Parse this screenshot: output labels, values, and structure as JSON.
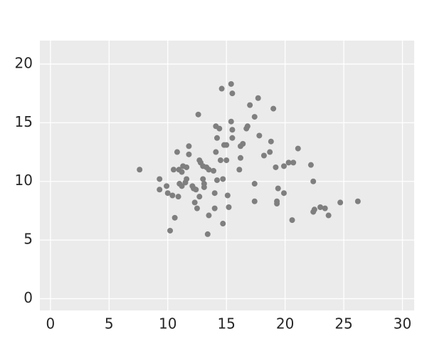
{
  "chart_data": {
    "type": "scatter",
    "color": "#7f7f7f",
    "background": "#ebebeb",
    "grid": true,
    "x": [
      7.6,
      9.3,
      9.3,
      9.9,
      10.0,
      10.4,
      10.6,
      10.2,
      10.5,
      10.8,
      10.96,
      11.2,
      11.3,
      11.6,
      11.0,
      11.2,
      11.5,
      11.6,
      10.9,
      11.8,
      11.8,
      12.1,
      12.2,
      12.4,
      12.3,
      12.5,
      12.6,
      12.7,
      12.8,
      12.7,
      13.0,
      13.3,
      13.5,
      13.9,
      13.0,
      13.1,
      13.1,
      13.4,
      13.5,
      14.0,
      14.0,
      14.1,
      14.4,
      14.2,
      14.1,
      14.2,
      14.5,
      14.7,
      14.7,
      14.6,
      14.8,
      15.0,
      15.0,
      15.1,
      15.2,
      15.4,
      15.5,
      15.4,
      15.5,
      15.5,
      16.1,
      16.2,
      16.2,
      16.4,
      16.7,
      16.8,
      17.0,
      17.4,
      17.4,
      17.4,
      17.7,
      17.8,
      18.2,
      18.7,
      18.8,
      19.0,
      19.2,
      19.4,
      19.3,
      19.3,
      19.9,
      19.9,
      20.3,
      20.7,
      20.6,
      21.1,
      22.2,
      22.4,
      22.4,
      22.5,
      23.0,
      23.4,
      23.7,
      24.7,
      26.2
    ],
    "values": [
      11.0,
      10.2,
      9.3,
      9.6,
      9.0,
      8.8,
      6.9,
      5.8,
      11.0,
      12.5,
      11.0,
      10.8,
      11.3,
      11.2,
      9.8,
      9.6,
      9.9,
      10.2,
      8.7,
      12.3,
      13.0,
      9.6,
      9.4,
      9.3,
      8.2,
      7.7,
      15.7,
      11.8,
      11.6,
      8.7,
      11.3,
      11.2,
      11.0,
      10.9,
      10.2,
      9.8,
      9.5,
      5.5,
      7.1,
      9.0,
      7.7,
      14.7,
      14.5,
      13.7,
      12.5,
      10.1,
      11.8,
      10.2,
      6.4,
      17.9,
      13.1,
      13.1,
      11.8,
      8.8,
      7.8,
      18.3,
      17.5,
      15.1,
      14.4,
      13.7,
      11.0,
      12.0,
      13.0,
      13.2,
      14.5,
      14.7,
      16.5,
      15.5,
      9.8,
      8.3,
      17.1,
      13.9,
      12.2,
      12.5,
      13.4,
      16.2,
      11.2,
      9.4,
      8.3,
      8.1,
      9.0,
      11.3,
      11.6,
      11.6,
      6.7,
      12.8,
      11.4,
      10.0,
      7.4,
      7.6,
      7.8,
      7.7,
      7.1,
      8.2,
      8.3
    ],
    "xlim": [
      -0.9,
      31
    ],
    "ylim": [
      -1,
      22
    ],
    "xticks": [
      0,
      5,
      10,
      15,
      20,
      25,
      30
    ],
    "yticks": [
      0,
      5,
      10,
      15,
      20
    ]
  }
}
